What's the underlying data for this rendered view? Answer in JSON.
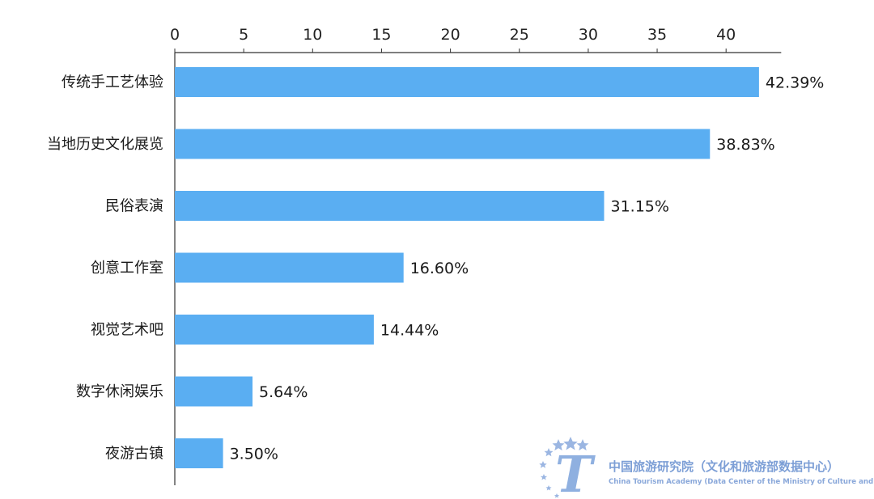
{
  "chart_data": {
    "type": "bar",
    "orientation": "horizontal",
    "categories": [
      "传统手工艺体验",
      "当地历史文化展览",
      "民俗表演",
      "创意工作室",
      "视觉艺术吧",
      "数字休闲娱乐",
      "夜游古镇"
    ],
    "values": [
      42.39,
      38.83,
      31.15,
      16.6,
      14.44,
      5.64,
      3.5
    ],
    "value_labels": [
      "42.39%",
      "38.83%",
      "31.15%",
      "16.60%",
      "14.44%",
      "5.64%",
      "3.50%"
    ],
    "x_ticks": [
      0,
      5,
      10,
      15,
      20,
      25,
      30,
      35,
      40
    ],
    "xlim": [
      0,
      44
    ],
    "x_axis_position": "top",
    "grid": false,
    "bar_color": "#5aaef2",
    "title": "",
    "xlabel": "",
    "ylabel": ""
  },
  "watermark": {
    "title": "中国旅游研究院（文化和旅游部数据中心）",
    "subtitle": "China Tourism Academy (Data Center of the Ministry of Culture and Tourism)",
    "logo_letter": "T",
    "color": "#7d9fd6"
  }
}
